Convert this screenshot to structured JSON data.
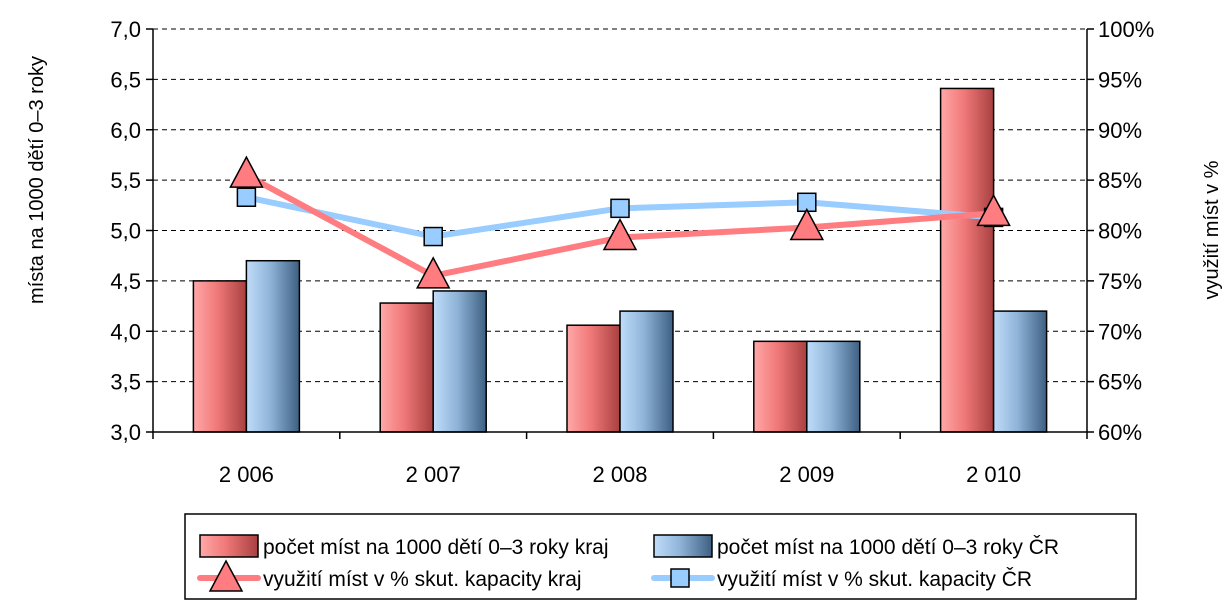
{
  "chart_data": {
    "type": "bar",
    "categories": [
      "2 006",
      "2 007",
      "2 008",
      "2 009",
      "2 010"
    ],
    "ylabel": "místa na 1000 dětí 0–3 roky",
    "y2label": "využití míst v %",
    "ylim": [
      3.0,
      7.0
    ],
    "y2lim": [
      60,
      100
    ],
    "yticks": [
      "3,0",
      "3,5",
      "4,0",
      "4,5",
      "5,0",
      "5,5",
      "6,0",
      "6,5",
      "7,0"
    ],
    "y2ticks": [
      "60%",
      "65%",
      "70%",
      "75%",
      "80%",
      "85%",
      "90%",
      "95%",
      "100%"
    ],
    "grid": true,
    "legend_position": "bottom",
    "bar_series": [
      {
        "name": "počet míst na 1000 dětí 0–3 roky kraj",
        "values": [
          4.5,
          4.28,
          4.06,
          3.9,
          6.41
        ],
        "axis": "left",
        "color_light": "#ffaaaa",
        "color_dark": "#b84848"
      },
      {
        "name": "počet míst na 1000 dětí 0–3 roky ČR",
        "values": [
          4.7,
          4.4,
          4.2,
          3.9,
          4.2
        ],
        "axis": "left",
        "color_light": "#b8d8f8",
        "color_dark": "#4a6f95"
      }
    ],
    "line_series": [
      {
        "name": "využití míst v % skut. kapacity kraj",
        "values": [
          85.5,
          75.5,
          79.3,
          80.3,
          81.7
        ],
        "axis": "right",
        "color": "#ff7c80",
        "marker": "triangle"
      },
      {
        "name": "využití míst v % skut. kapacity ČR",
        "values": [
          83.3,
          79.4,
          82.2,
          82.8,
          81.3
        ],
        "axis": "right",
        "color": "#99ccff",
        "marker": "square"
      }
    ]
  }
}
